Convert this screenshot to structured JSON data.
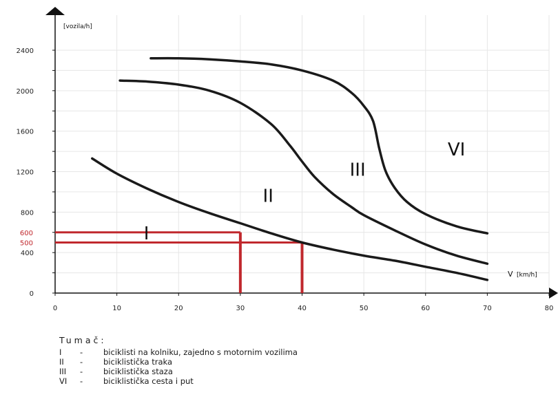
{
  "chart_data": {
    "type": "line",
    "ylabel": "[vozila/h]",
    "xlabel_var": "V",
    "xlabel_unit": "[km/h]",
    "xlim": [
      0,
      80
    ],
    "ylim": [
      0,
      2400
    ],
    "x_ticks": [
      0,
      10,
      20,
      30,
      40,
      50,
      60,
      70,
      80
    ],
    "y_ticks": [
      0,
      400,
      800,
      1200,
      1600,
      2000,
      2400
    ],
    "y_ticks_red": [
      500,
      600
    ],
    "series": [
      {
        "name": "II",
        "x": [
          6,
          10,
          15,
          20,
          25,
          30,
          35,
          40,
          45,
          50,
          55,
          60,
          65,
          70
        ],
        "y": [
          1330,
          1180,
          1030,
          900,
          790,
          690,
          590,
          500,
          430,
          370,
          320,
          260,
          200,
          130
        ]
      },
      {
        "name": "III",
        "x": [
          10.5,
          15,
          20,
          25,
          30,
          35,
          38,
          40,
          42,
          45,
          48,
          50,
          55,
          60,
          65,
          70
        ],
        "y": [
          2100,
          2090,
          2060,
          2000,
          1880,
          1670,
          1460,
          1300,
          1150,
          980,
          850,
          770,
          620,
          480,
          370,
          290
        ]
      },
      {
        "name": "VI",
        "x": [
          15.5,
          20,
          25,
          30,
          35,
          40,
          45,
          48,
          50,
          51.5,
          52.5,
          53.5,
          55,
          57,
          60,
          65,
          70
        ],
        "y": [
          2320,
          2320,
          2310,
          2290,
          2260,
          2200,
          2100,
          1980,
          1850,
          1700,
          1430,
          1210,
          1040,
          900,
          780,
          660,
          590
        ]
      }
    ],
    "region_labels": [
      {
        "text": "I",
        "x": 14.8,
        "y": 530
      },
      {
        "text": "II",
        "x": 34.5,
        "y": 900
      },
      {
        "text": "III",
        "x": 49,
        "y": 1160
      },
      {
        "text": "VI",
        "x": 65,
        "y": 1360
      }
    ],
    "reference_lines": [
      {
        "y": 600,
        "x": 30,
        "color": "#c0282d"
      },
      {
        "y": 500,
        "x": 40,
        "color": "#c0282d"
      }
    ],
    "colors": {
      "curve": "#1a1a1a",
      "reference": "#c0282d",
      "grid": "#e6e6e6"
    },
    "grid": true
  },
  "legend": {
    "title": "Tumač:",
    "items": [
      {
        "code": "I",
        "dash": "-",
        "text": "biciklisti na kolniku, zajedno s motornim vozilima"
      },
      {
        "code": "II",
        "dash": "-",
        "text": "biciklistička traka"
      },
      {
        "code": "III",
        "dash": "-",
        "text": "biciklistička staza"
      },
      {
        "code": "VI",
        "dash": "-",
        "text": "biciklistička cesta i put"
      }
    ]
  }
}
